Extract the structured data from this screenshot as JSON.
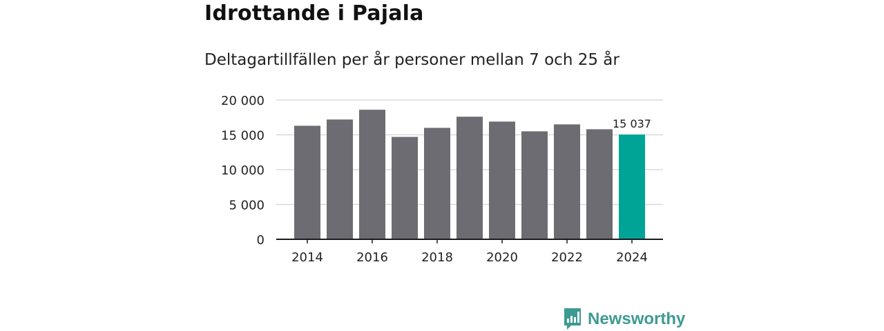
{
  "header": {
    "title": "Idrottande i Pajala",
    "subtitle": "Deltagartillfällen per år personer mellan 7 och 25 år"
  },
  "brand": {
    "name": "Newsworthy"
  },
  "colors": {
    "bar": "#6d6c72",
    "highlight": "#00a497",
    "grid": "#d9d9d9",
    "axis": "#1a1a1a",
    "brand": "#3d9a90"
  },
  "chart_data": {
    "type": "bar",
    "title": "Idrottande i Pajala",
    "subtitle": "Deltagartillfällen per år personer mellan 7 och 25 år",
    "xlabel": "",
    "ylabel": "",
    "categories": [
      "2014",
      "2015",
      "2016",
      "2017",
      "2018",
      "2019",
      "2020",
      "2021",
      "2022",
      "2023",
      "2024"
    ],
    "values": [
      16300,
      17200,
      18600,
      14700,
      16000,
      17600,
      16900,
      15500,
      16500,
      15800,
      15037
    ],
    "highlight_index": 10,
    "highlight_label": "15 037",
    "ylim": [
      0,
      20000
    ],
    "yticks": [
      0,
      5000,
      10000,
      15000,
      20000
    ],
    "ytick_labels": [
      "0",
      "5 000",
      "10 000",
      "15 000",
      "20 000"
    ],
    "xtick_labels": [
      "2014",
      "2016",
      "2018",
      "2020",
      "2022",
      "2024"
    ],
    "grid": true
  }
}
